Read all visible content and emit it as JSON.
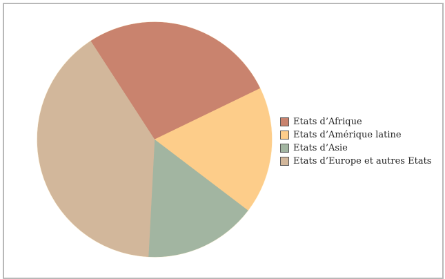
{
  "chart_data": {
    "type": "pie",
    "categories": [
      "Etats d’Afrique",
      "Etats d’Amérique latine",
      "Etats d’Asie",
      "Etats d’Europe et autres Etats"
    ],
    "values": [
      27.0,
      17.5,
      15.5,
      40.0
    ],
    "colors": [
      "#c9836e",
      "#fdcd8a",
      "#a2b5a1",
      "#d2b79b"
    ],
    "start_angle_deg": 237,
    "direction": "clockwise",
    "legend_position": "right",
    "title": "",
    "xlabel": "",
    "ylabel": ""
  }
}
